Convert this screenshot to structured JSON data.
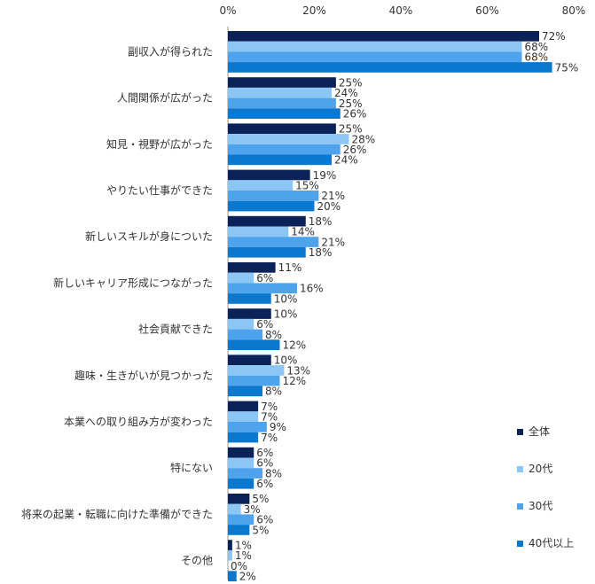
{
  "chart_data": {
    "type": "bar",
    "orientation": "horizontal",
    "categories": [
      "副収入が得られた",
      "人間関係が広がった",
      "知見・視野が広がった",
      "やりたい仕事ができた",
      "新しいスキルが身についた",
      "新しいキャリア形成につながった",
      "社会貢献できた",
      "趣味・生きがいが見つかった",
      "本業への取り組み方が変わった",
      "特にない",
      "将来の起業・転職に向けた準備ができた",
      "その他"
    ],
    "series": [
      {
        "name": "全体",
        "color": "#0a2258",
        "values": [
          72,
          25,
          25,
          19,
          18,
          11,
          10,
          10,
          7,
          6,
          5,
          1
        ],
        "labels": [
          "72%",
          "25%",
          "25%",
          "19%",
          "18%",
          "11%",
          "10%",
          "10%",
          "7%",
          "6%",
          "5%",
          "1%"
        ]
      },
      {
        "name": "20代",
        "color": "#8cc6f4",
        "values": [
          68,
          24,
          28,
          15,
          14,
          6,
          6,
          13,
          7,
          6,
          3,
          1
        ],
        "labels": [
          "68%",
          "24%",
          "28%",
          "15%",
          "14%",
          "6%",
          "6%",
          "13%",
          "7%",
          "6%",
          "3%",
          "1%"
        ]
      },
      {
        "name": "30代",
        "color": "#4fa3ec",
        "values": [
          68,
          25,
          26,
          21,
          21,
          16,
          8,
          12,
          9,
          8,
          6,
          0
        ],
        "labels": [
          "68%",
          "25%",
          "26%",
          "21%",
          "21%",
          "16%",
          "8%",
          "12%",
          "9%",
          "8%",
          "6%",
          "0%"
        ]
      },
      {
        "name": "40代以上",
        "color": "#0b78cf",
        "values": [
          75,
          26,
          24,
          20,
          18,
          10,
          12,
          8,
          7,
          6,
          5,
          2
        ],
        "labels": [
          "75%",
          "26%",
          "24%",
          "20%",
          "18%",
          "10%",
          "12%",
          "8%",
          "7%",
          "6%",
          "5%",
          "2%"
        ]
      }
    ],
    "xlim": [
      0,
      80
    ],
    "xticks": [
      "0%",
      "20%",
      "40%",
      "60%",
      "80%"
    ],
    "grid": false,
    "legend_position": "bottom-right"
  }
}
